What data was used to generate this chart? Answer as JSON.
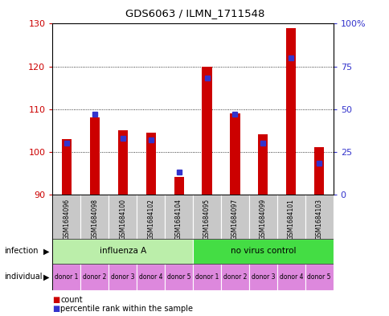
{
  "title": "GDS6063 / ILMN_1711548",
  "samples": [
    "GSM1684096",
    "GSM1684098",
    "GSM1684100",
    "GSM1684102",
    "GSM1684104",
    "GSM1684095",
    "GSM1684097",
    "GSM1684099",
    "GSM1684101",
    "GSM1684103"
  ],
  "counts": [
    103,
    108,
    105,
    104.5,
    94,
    120,
    109,
    104,
    129,
    101
  ],
  "percentiles": [
    30,
    47,
    33,
    32,
    13,
    68,
    47,
    30,
    80,
    18
  ],
  "ylim_left": [
    90,
    130
  ],
  "ylim_right": [
    0,
    100
  ],
  "yticks_left": [
    90,
    100,
    110,
    120,
    130
  ],
  "yticks_right": [
    0,
    25,
    50,
    75,
    100
  ],
  "bar_color": "#cc0000",
  "dot_color": "#3333cc",
  "bar_bottom": 90,
  "infection_groups": [
    {
      "label": "influenza A",
      "color": "#bbeeaa"
    },
    {
      "label": "no virus control",
      "color": "#44dd44"
    }
  ],
  "individual_labels": [
    "donor 1",
    "donor 2",
    "donor 3",
    "donor 4",
    "donor 5",
    "donor 1",
    "donor 2",
    "donor 3",
    "donor 4",
    "donor 5"
  ],
  "individual_color": "#dd88dd",
  "tick_color_left": "#cc0000",
  "tick_color_right": "#3333cc",
  "sample_bg": "#c8c8c8",
  "legend_count_color": "#cc0000",
  "legend_dot_color": "#3333cc"
}
